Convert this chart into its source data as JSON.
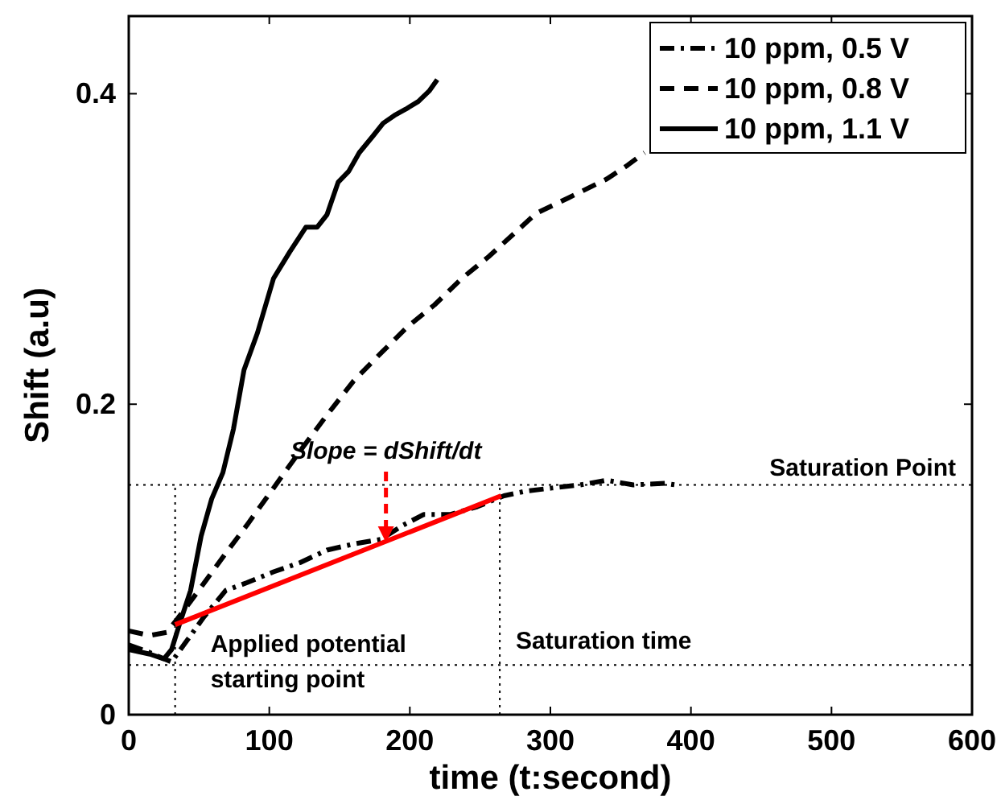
{
  "chart_data": {
    "type": "line",
    "xlabel": "time (t:second)",
    "ylabel": "Shift (a.u)",
    "xlim": [
      0,
      600
    ],
    "xticks": [
      0,
      100,
      200,
      300,
      400,
      500,
      600
    ],
    "ylim": [
      0,
      0.45
    ],
    "yticks": [
      0,
      {
        "value": 0.2,
        "label": "0.2"
      },
      {
        "value": 0.4,
        "label": "0.4"
      }
    ],
    "grid": false,
    "legend": "top right",
    "series": [
      {
        "name": "10 ppm, 0.5 V",
        "color": "#000000",
        "line_style": "dashdot",
        "x": [
          0,
          15,
          25,
          30.5,
          40,
          53.5,
          69,
          84,
          103,
          122,
          141,
          160,
          179.5,
          195,
          210,
          229,
          248,
          267,
          282.6,
          301,
          321,
          340,
          359,
          381.5,
          389
        ],
        "values": [
          0.045,
          0.04,
          0.036,
          0.034,
          0.046,
          0.063,
          0.08,
          0.085,
          0.092,
          0.098,
          0.106,
          0.11,
          0.113,
          0.122,
          0.129,
          0.129,
          0.134,
          0.141,
          0.144,
          0.146,
          0.148,
          0.151,
          0.148,
          0.149,
          0.148
        ]
      },
      {
        "name": "10 ppm, 0.8 V",
        "color": "#000000",
        "line_style": "dashed",
        "x": [
          0,
          15,
          27,
          34,
          44,
          57,
          69,
          84,
          103,
          122,
          141,
          160,
          179.5,
          198.5,
          217.6,
          237,
          256,
          273,
          290,
          313,
          340,
          355,
          367
        ],
        "values": [
          0.054,
          0.051,
          0.053,
          0.061,
          0.073,
          0.089,
          0.104,
          0.122,
          0.146,
          0.17,
          0.193,
          0.215,
          0.233,
          0.25,
          0.264,
          0.281,
          0.295,
          0.309,
          0.323,
          0.333,
          0.345,
          0.354,
          0.362
        ]
      },
      {
        "name": "10 ppm, 1.1 V",
        "color": "#000000",
        "line_style": "solid",
        "x": [
          0,
          15,
          25,
          30.5,
          36,
          44,
          51.5,
          59,
          67,
          74.5,
          82,
          91.6,
          103,
          114.5,
          126,
          134,
          141,
          149,
          156.5,
          164,
          174,
          181,
          189,
          197,
          206,
          214,
          219.5
        ],
        "values": [
          0.042,
          0.039,
          0.036,
          0.042,
          0.058,
          0.08,
          0.115,
          0.139,
          0.156,
          0.184,
          0.222,
          0.246,
          0.281,
          0.298,
          0.314,
          0.314,
          0.322,
          0.343,
          0.35,
          0.362,
          0.373,
          0.381,
          0.386,
          0.39,
          0.395,
          0.402,
          0.409
        ]
      },
      {
        "color": "#ff0000",
        "line_style": "solid",
        "x": [
          33,
          265
        ],
        "values": [
          0.058,
          0.141
        ]
      }
    ],
    "ref_lines": [
      {
        "axis": "y",
        "value": 0.148,
        "label": "Saturation Point",
        "line_style": "dotted"
      },
      {
        "axis": "y",
        "value": 0.032,
        "label": null,
        "line_style": "dotted"
      },
      {
        "axis": "x",
        "value": 264,
        "label": "Saturation time",
        "line_style": "dotted"
      },
      {
        "axis": "x",
        "value": 33,
        "label": "Applied potential\nstarting point",
        "line_style": "dotted"
      }
    ],
    "annotations": [
      {
        "text": "Slope = dShift/dt",
        "x": 183,
        "y": 0.111
      }
    ]
  }
}
